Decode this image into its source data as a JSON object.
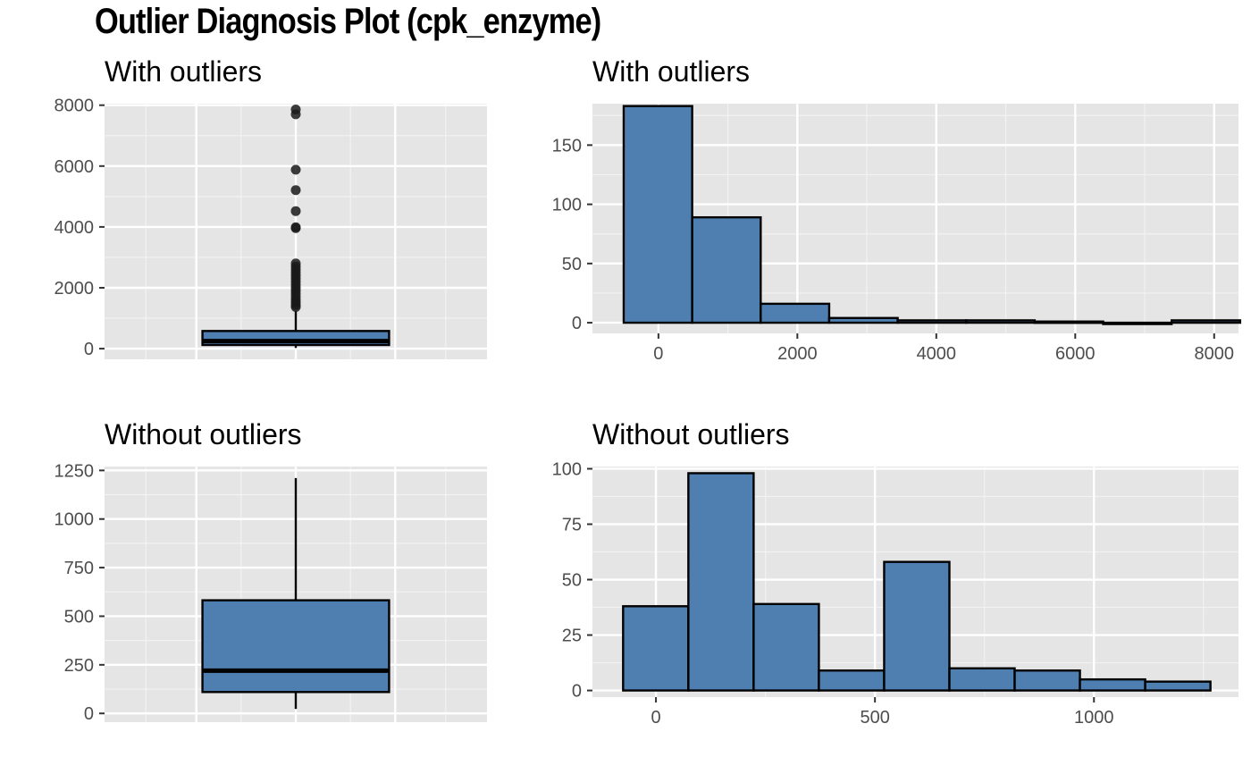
{
  "title": "Outlier Diagnosis Plot (cpk_enzyme)",
  "colors": {
    "panel_background": "#e5e5e5",
    "grid_major": "#ffffff",
    "grid_minor": "#f2f2f2",
    "fill": "#4f7fb0",
    "outline": "#000000",
    "outlier_point": "#1a1a1a",
    "tick_text": "#4d4d4d"
  },
  "chart_data": [
    {
      "id": "box-with",
      "type": "box",
      "title": "With outliers",
      "ylim": [
        -350,
        8050
      ],
      "y_ticks": [
        0,
        2000,
        4000,
        6000,
        8000
      ],
      "y_tick_labels": [
        "0",
        "2000",
        "4000",
        "6000",
        "8000"
      ],
      "box": {
        "q1": 120,
        "median": 250,
        "q3": 580,
        "whisker_low": 23,
        "whisker_high": 1240
      },
      "outliers": [
        1370,
        1430,
        1520,
        1600,
        1700,
        1800,
        1900,
        2000,
        2100,
        2200,
        2300,
        2400,
        2500,
        2600,
        2700,
        2800,
        3960,
        3990,
        4520,
        5210,
        5880,
        7700,
        7860
      ],
      "grid": true
    },
    {
      "id": "hist-with",
      "type": "histogram",
      "title": "With outliers",
      "xlim": [
        -950,
        8350
      ],
      "ylim": [
        -9,
        185
      ],
      "x_ticks": [
        0,
        2000,
        4000,
        6000,
        8000
      ],
      "x_tick_labels": [
        "0",
        "2000",
        "4000",
        "6000",
        "8000"
      ],
      "y_ticks": [
        0,
        50,
        100,
        150
      ],
      "y_tick_labels": [
        "0",
        "50",
        "100",
        "150"
      ],
      "bins": [
        {
          "x0": -500,
          "x1": 486,
          "count": 183
        },
        {
          "x0": 486,
          "x1": 1472,
          "count": 89
        },
        {
          "x0": 1472,
          "x1": 2458,
          "count": 16
        },
        {
          "x0": 2458,
          "x1": 3444,
          "count": 4
        },
        {
          "x0": 3444,
          "x1": 4430,
          "count": 2
        },
        {
          "x0": 4430,
          "x1": 5416,
          "count": 2
        },
        {
          "x0": 5416,
          "x1": 6402,
          "count": 1
        },
        {
          "x0": 6402,
          "x1": 7388,
          "count": 0
        },
        {
          "x0": 7388,
          "x1": 8374,
          "count": 2
        }
      ],
      "grid": true
    },
    {
      "id": "box-without",
      "type": "box",
      "title": "Without outliers",
      "ylim": [
        -45,
        1270
      ],
      "y_ticks": [
        0,
        250,
        500,
        750,
        1000,
        1250
      ],
      "y_tick_labels": [
        "0",
        "250",
        "500",
        "750",
        "1000",
        "1250"
      ],
      "box": {
        "q1": 110,
        "median": 220,
        "q3": 582,
        "whisker_low": 23,
        "whisker_high": 1211
      },
      "outliers": [],
      "grid": true
    },
    {
      "id": "hist-without",
      "type": "histogram",
      "title": "Without outliers",
      "xlim": [
        -145,
        1330
      ],
      "ylim": [
        -3,
        101
      ],
      "x_ticks": [
        0,
        500,
        1000
      ],
      "x_tick_labels": [
        "0",
        "500",
        "1000"
      ],
      "y_ticks": [
        0,
        25,
        50,
        75,
        100
      ],
      "y_tick_labels": [
        "0",
        "25",
        "50",
        "75",
        "100"
      ],
      "bins": [
        {
          "x0": -75,
          "x1": 74,
          "count": 38
        },
        {
          "x0": 74,
          "x1": 223,
          "count": 98
        },
        {
          "x0": 223,
          "x1": 372,
          "count": 39
        },
        {
          "x0": 372,
          "x1": 521,
          "count": 9
        },
        {
          "x0": 521,
          "x1": 670,
          "count": 58
        },
        {
          "x0": 670,
          "x1": 819,
          "count": 10
        },
        {
          "x0": 819,
          "x1": 968,
          "count": 9
        },
        {
          "x0": 968,
          "x1": 1117,
          "count": 5
        },
        {
          "x0": 1117,
          "x1": 1266,
          "count": 4
        }
      ],
      "grid": true
    }
  ]
}
